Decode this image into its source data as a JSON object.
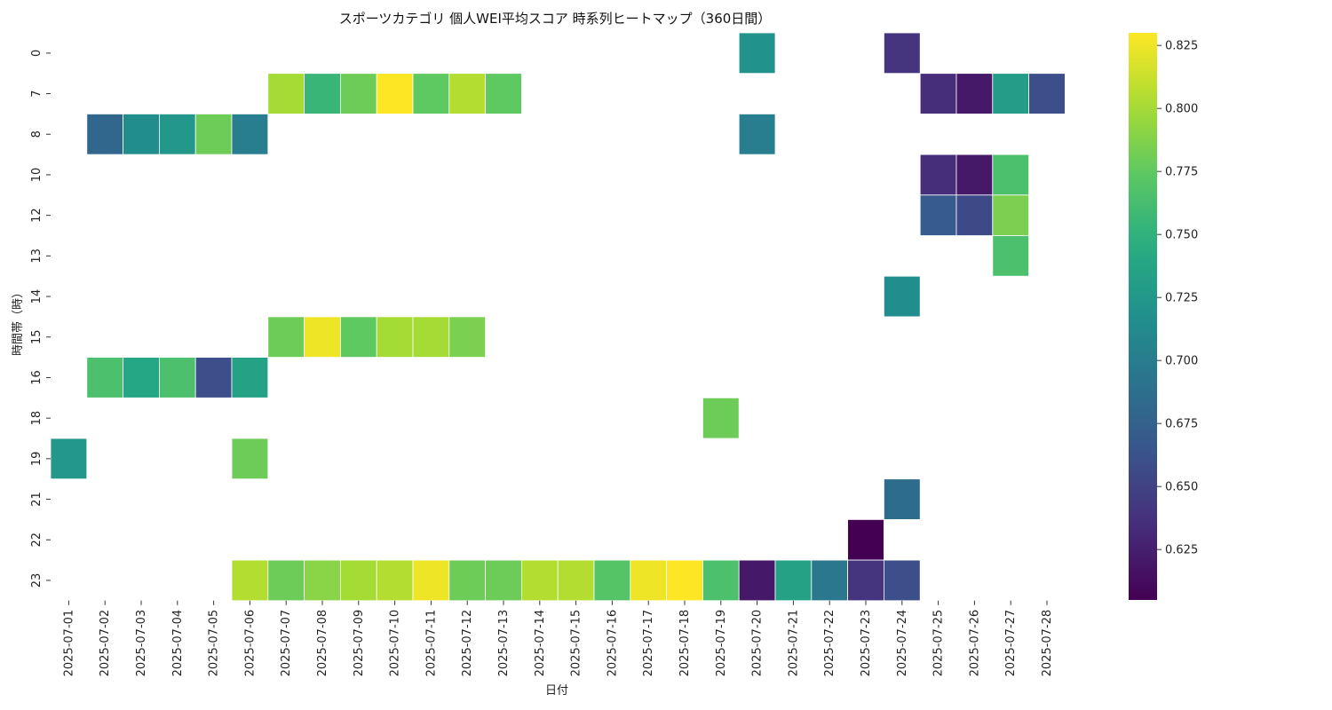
{
  "chart_data": {
    "type": "heatmap",
    "title": "スポーツカテゴリ 個人WEI平均スコア 時系列ヒートマップ（360日間）",
    "xlabel": "日付",
    "ylabel": "時間帯（時）",
    "x": [
      "2025-07-01",
      "2025-07-02",
      "2025-07-03",
      "2025-07-04",
      "2025-07-05",
      "2025-07-06",
      "2025-07-07",
      "2025-07-08",
      "2025-07-09",
      "2025-07-10",
      "2025-07-11",
      "2025-07-12",
      "2025-07-13",
      "2025-07-14",
      "2025-07-15",
      "2025-07-16",
      "2025-07-17",
      "2025-07-18",
      "2025-07-19",
      "2025-07-20",
      "2025-07-21",
      "2025-07-22",
      "2025-07-23",
      "2025-07-24",
      "2025-07-25",
      "2025-07-26",
      "2025-07-27",
      "2025-07-28"
    ],
    "y": [
      "0",
      "7",
      "8",
      "10",
      "12",
      "13",
      "14",
      "15",
      "16",
      "18",
      "19",
      "21",
      "22",
      "23"
    ],
    "colormap": "viridis",
    "vmin": 0.605,
    "vmax": 0.83,
    "colorbar_ticks": [
      "0.625",
      "0.650",
      "0.675",
      "0.700",
      "0.725",
      "0.750",
      "0.775",
      "0.800",
      "0.825"
    ],
    "cells": [
      [
        "2025-07-20",
        "0",
        0.72
      ],
      [
        "2025-07-24",
        "0",
        0.64
      ],
      [
        "2025-07-07",
        "7",
        0.8
      ],
      [
        "2025-07-08",
        "7",
        0.755
      ],
      [
        "2025-07-09",
        "7",
        0.78
      ],
      [
        "2025-07-10",
        "7",
        0.83
      ],
      [
        "2025-07-11",
        "7",
        0.775
      ],
      [
        "2025-07-12",
        "7",
        0.805
      ],
      [
        "2025-07-13",
        "7",
        0.775
      ],
      [
        "2025-07-25",
        "7",
        0.635
      ],
      [
        "2025-07-26",
        "7",
        0.62
      ],
      [
        "2025-07-27",
        "7",
        0.73
      ],
      [
        "2025-07-28",
        "7",
        0.66
      ],
      [
        "2025-07-02",
        "8",
        0.68
      ],
      [
        "2025-07-03",
        "8",
        0.715
      ],
      [
        "2025-07-04",
        "8",
        0.725
      ],
      [
        "2025-07-05",
        "8",
        0.78
      ],
      [
        "2025-07-06",
        "8",
        0.7
      ],
      [
        "2025-07-20",
        "8",
        0.7
      ],
      [
        "2025-07-25",
        "10",
        0.635
      ],
      [
        "2025-07-26",
        "10",
        0.62
      ],
      [
        "2025-07-27",
        "10",
        0.765
      ],
      [
        "2025-07-25",
        "12",
        0.67
      ],
      [
        "2025-07-26",
        "12",
        0.655
      ],
      [
        "2025-07-27",
        "12",
        0.785
      ],
      [
        "2025-07-27",
        "13",
        0.765
      ],
      [
        "2025-07-24",
        "14",
        0.715
      ],
      [
        "2025-07-07",
        "15",
        0.78
      ],
      [
        "2025-07-08",
        "15",
        0.825
      ],
      [
        "2025-07-09",
        "15",
        0.775
      ],
      [
        "2025-07-10",
        "15",
        0.8
      ],
      [
        "2025-07-11",
        "15",
        0.8
      ],
      [
        "2025-07-12",
        "15",
        0.785
      ],
      [
        "2025-07-02",
        "16",
        0.765
      ],
      [
        "2025-07-03",
        "16",
        0.74
      ],
      [
        "2025-07-04",
        "16",
        0.765
      ],
      [
        "2025-07-05",
        "16",
        0.66
      ],
      [
        "2025-07-06",
        "16",
        0.735
      ],
      [
        "2025-07-19",
        "18",
        0.78
      ],
      [
        "2025-07-01",
        "19",
        0.725
      ],
      [
        "2025-07-06",
        "19",
        0.78
      ],
      [
        "2025-07-24",
        "21",
        0.685
      ],
      [
        "2025-07-23",
        "22",
        0.605
      ],
      [
        "2025-07-06",
        "23",
        0.805
      ],
      [
        "2025-07-07",
        "23",
        0.78
      ],
      [
        "2025-07-08",
        "23",
        0.79
      ],
      [
        "2025-07-09",
        "23",
        0.8
      ],
      [
        "2025-07-10",
        "23",
        0.805
      ],
      [
        "2025-07-11",
        "23",
        0.825
      ],
      [
        "2025-07-12",
        "23",
        0.78
      ],
      [
        "2025-07-13",
        "23",
        0.78
      ],
      [
        "2025-07-14",
        "23",
        0.805
      ],
      [
        "2025-07-15",
        "23",
        0.805
      ],
      [
        "2025-07-16",
        "23",
        0.77
      ],
      [
        "2025-07-17",
        "23",
        0.825
      ],
      [
        "2025-07-18",
        "23",
        0.83
      ],
      [
        "2025-07-19",
        "23",
        0.765
      ],
      [
        "2025-07-20",
        "23",
        0.62
      ],
      [
        "2025-07-21",
        "23",
        0.735
      ],
      [
        "2025-07-22",
        "23",
        0.695
      ],
      [
        "2025-07-23",
        "23",
        0.64
      ],
      [
        "2025-07-24",
        "23",
        0.66
      ]
    ],
    "grid": false,
    "legend": "colorbar-right"
  }
}
